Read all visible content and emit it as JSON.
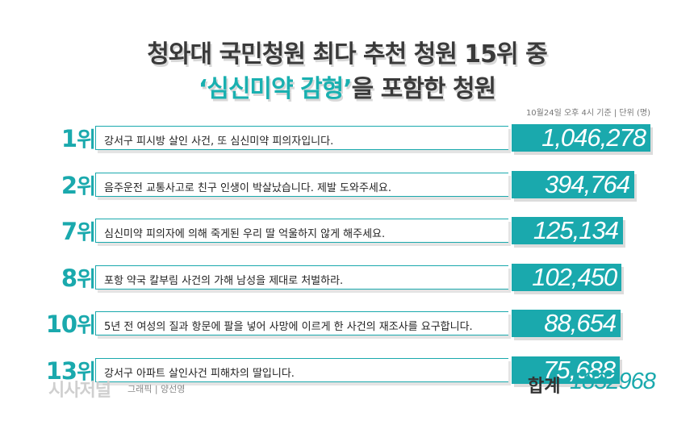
{
  "title_line1": "청와대 국민청원 최다 추천 청원 15위 중",
  "title_line2_highlight": "‘심신미약 감형’",
  "title_line2_rest": "을 포함한 청원",
  "note": "10월24일 오후 4시 기준 | 단위 (명)",
  "rank_unit": "위",
  "colors": {
    "accent": "#1aa9ad",
    "title": "#3a3a3a",
    "highlight": "#19b0b0"
  },
  "chart_data": {
    "type": "bar",
    "categories": [
      "1",
      "2",
      "7",
      "8",
      "10",
      "13"
    ],
    "labels": [
      "강서구 피시방 살인 사건, 또 심신미약 피의자입니다.",
      "음주운전 교통사고로 친구 인생이 박살났습니다. 제발 도와주세요.",
      "심신미약 피의자에 의해 죽게된 우리 딸 억울하지 않게 해주세요.",
      "포항 약국 칼부림 사건의 가해 남성을 제대로 처벌하라.",
      "5년 전 여성의 질과 항문에 팔을 넣어 사망에 이르게 한 사건의 재조사를 요구합니다.",
      "강서구 아파트 살인사건 피해차의 딸입니다."
    ],
    "values": [
      1046278,
      394764,
      125134,
      102450,
      88654,
      75688
    ],
    "value_labels": [
      "1,046,278",
      "394,764",
      "125,134",
      "102,450",
      "88,654",
      "75,688"
    ]
  },
  "total_label": "합계",
  "total_value": "1832968",
  "logo": "시사저널",
  "credit": "그래픽 | 양선영"
}
